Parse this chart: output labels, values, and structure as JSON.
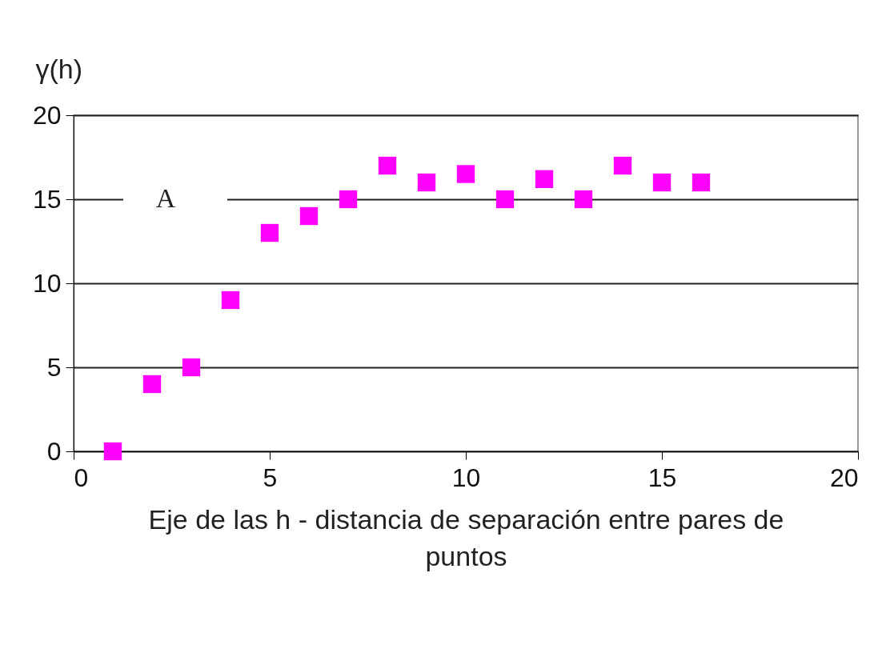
{
  "chart_data": {
    "type": "scatter",
    "xlabel": "Eje de las h - distancia de separación entre pares de puntos",
    "ylabel": "γ(h)",
    "x": [
      1,
      2,
      3,
      4,
      5,
      6,
      7,
      8,
      9,
      10,
      11,
      12,
      13,
      14,
      15,
      16
    ],
    "values": [
      0,
      4,
      5,
      9,
      13,
      14,
      15,
      17,
      16,
      16.5,
      15,
      16.2,
      15,
      17,
      16,
      16
    ],
    "color": "#ff00ff",
    "marker": "square",
    "xlim": [
      0,
      20
    ],
    "xticks": [
      0,
      5,
      10,
      15,
      20
    ],
    "ylim": [
      0,
      20
    ],
    "yticks": [
      0,
      5,
      10,
      15,
      20
    ],
    "grid": "y",
    "annotations": [
      "A"
    ]
  }
}
